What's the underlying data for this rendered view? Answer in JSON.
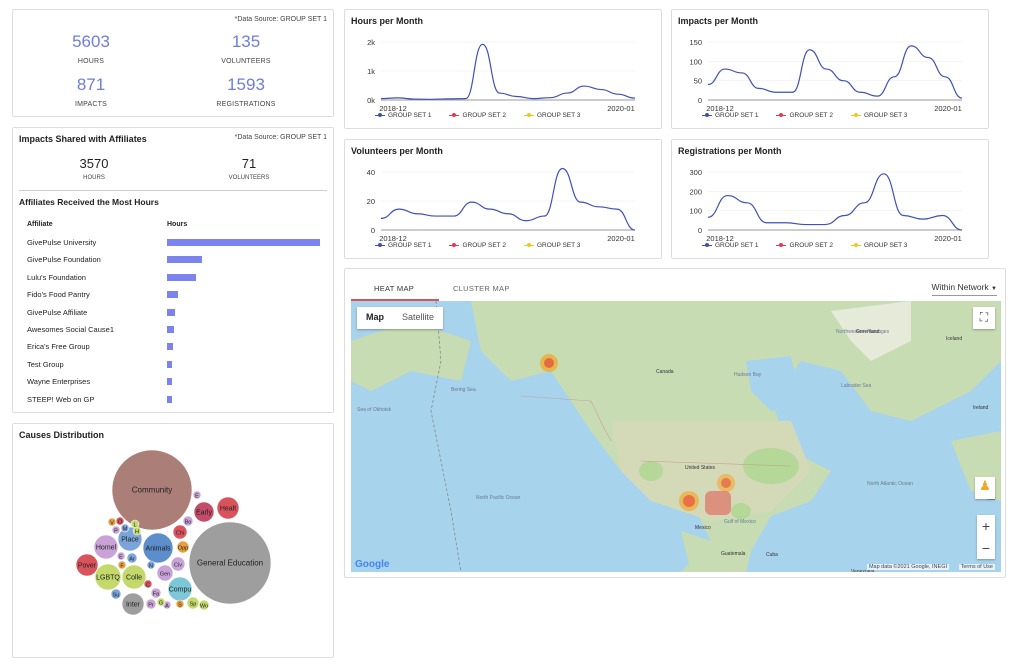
{
  "summary": {
    "source": "*Data Source: GROUP SET 1",
    "hours": "5603",
    "hours_label": "HOURS",
    "volunteers": "135",
    "volunteers_label": "VOLUNTEERS",
    "impacts": "871",
    "impacts_label": "IMPACTS",
    "registrations": "1593",
    "registrations_label": "REGISTRATIONS"
  },
  "affiliates": {
    "title": "Impacts Shared with Affiliates",
    "source": "*Data Source: GROUP SET 1",
    "hours": "3570",
    "hours_label": "HOURS",
    "volunteers": "71",
    "volunteers_label": "VOLUNTEERS",
    "most_title": "Affiliates Received the Most Hours",
    "col_affiliate": "Affiliate",
    "col_hours": "Hours",
    "rows": [
      {
        "name": "GivePulse University",
        "value": 1.0
      },
      {
        "name": "GivePulse Foundation",
        "value": 0.23
      },
      {
        "name": "Lulu's Foundation",
        "value": 0.19
      },
      {
        "name": "Fido's Food Pantry",
        "value": 0.07
      },
      {
        "name": "GivePulse Affiliate",
        "value": 0.05
      },
      {
        "name": "Awesomes Social Cause1",
        "value": 0.045
      },
      {
        "name": "Erica's Free Group",
        "value": 0.04
      },
      {
        "name": "Test Group",
        "value": 0.03
      },
      {
        "name": "Wayne Enterprises",
        "value": 0.03
      },
      {
        "name": "STEEP! Web on GP",
        "value": 0.03
      }
    ]
  },
  "causes": {
    "title": "Causes Distribution",
    "bubbles": [
      {
        "label": "Community",
        "color": "#ab7f78"
      },
      {
        "label": "General Education",
        "color": "#9e9e9e"
      },
      {
        "label": "Healt",
        "color": "#d9535c"
      },
      {
        "label": "Early",
        "color": "#c44b6a"
      },
      {
        "label": "E",
        "color": "#c9a3d8"
      },
      {
        "label": "Bo",
        "color": "#c9a3d8"
      },
      {
        "label": "Chi",
        "color": "#d9535c"
      },
      {
        "label": "Opp",
        "color": "#e6a040"
      },
      {
        "label": "Civ",
        "color": "#c9a3d8"
      },
      {
        "label": "Place",
        "color": "#7ba4d8"
      },
      {
        "label": "Animals",
        "color": "#5b8ecb"
      },
      {
        "label": "Homel",
        "color": "#c9a3d8"
      },
      {
        "label": "Pover",
        "color": "#d9535c"
      },
      {
        "label": "LGBTQ",
        "color": "#c4d86c"
      },
      {
        "label": "Colle",
        "color": "#c4d86c"
      },
      {
        "label": "Gen",
        "color": "#c9a3d8"
      },
      {
        "label": "Compu",
        "color": "#7cc8d8"
      },
      {
        "label": "Inter",
        "color": "#9e9e9e"
      },
      {
        "label": "Sp",
        "color": "#c4d86c"
      },
      {
        "label": "Wo",
        "color": "#c4d86c"
      },
      {
        "label": "Ar",
        "color": "#7ba4d8"
      },
      {
        "label": "Su",
        "color": "#7ba4d8"
      },
      {
        "label": "Pr",
        "color": "#c9a3d8"
      },
      {
        "label": "Fa",
        "color": "#c9a3d8"
      },
      {
        "label": "V",
        "color": "#e6a040"
      },
      {
        "label": "O",
        "color": "#d9535c"
      },
      {
        "label": "P",
        "color": "#c9a3d8"
      },
      {
        "label": "M",
        "color": "#7ba4d8"
      },
      {
        "label": "L",
        "color": "#c4d86c"
      },
      {
        "label": "H",
        "color": "#c4d86c"
      },
      {
        "label": "F",
        "color": "#e6a040"
      },
      {
        "label": "N",
        "color": "#7ba4d8"
      },
      {
        "label": "S",
        "color": "#e6a040"
      },
      {
        "label": "C",
        "color": "#d9535c"
      },
      {
        "label": "A",
        "color": "#c9a3d8"
      },
      {
        "label": "E",
        "color": "#c9a3d8"
      },
      {
        "label": "G",
        "color": "#c4d86c"
      }
    ]
  },
  "legend": {
    "s1": "GROUP SET 1",
    "s2": "GROUP SET 2",
    "s3": "GROUP SET 3",
    "c1": "#3f51b5",
    "c2": "#e53950",
    "c3": "#f5c518"
  },
  "chart_data": [
    {
      "type": "line",
      "title": "Hours per Month",
      "ylabel": "",
      "xlabel": "",
      "yticks": [
        "0k",
        "1k",
        "2k"
      ],
      "ymax": 2500,
      "x_ticks": [
        "2018-12",
        "2020-01"
      ],
      "series": [
        {
          "name": "GROUP SET 1",
          "values": [
            60,
            90,
            40,
            30,
            50,
            60,
            2400,
            300,
            150,
            60,
            100,
            300,
            600,
            450,
            250,
            80
          ]
        }
      ]
    },
    {
      "type": "line",
      "title": "Impacts per Month",
      "yticks": [
        "0",
        "50",
        "100",
        "150"
      ],
      "ymax": 150,
      "x_ticks": [
        "2018-12",
        "2020-01"
      ],
      "series": [
        {
          "name": "GROUP SET 1",
          "values": [
            40,
            80,
            70,
            30,
            20,
            20,
            130,
            80,
            50,
            20,
            10,
            60,
            140,
            110,
            60,
            5
          ]
        }
      ]
    },
    {
      "type": "line",
      "title": "Volunteers per Month",
      "yticks": [
        "0",
        "20",
        "40"
      ],
      "ymax": 50,
      "x_ticks": [
        "2018-12",
        "2020-01"
      ],
      "series": [
        {
          "name": "GROUP SET 1",
          "values": [
            10,
            18,
            14,
            12,
            12,
            24,
            18,
            14,
            8,
            12,
            53,
            24,
            20,
            18,
            0
          ]
        }
      ]
    },
    {
      "type": "line",
      "title": "Registrations per Month",
      "yticks": [
        "0",
        "100",
        "200",
        "300"
      ],
      "ymax": 320,
      "x_ticks": [
        "2018-12",
        "2020-01"
      ],
      "series": [
        {
          "name": "GROUP SET 1",
          "values": [
            70,
            190,
            150,
            40,
            40,
            30,
            30,
            80,
            150,
            310,
            80,
            60,
            80,
            0
          ]
        }
      ]
    }
  ],
  "map": {
    "tab_heat": "HEAT MAP",
    "tab_cluster": "CLUSTER MAP",
    "network": "Within Network",
    "btn_map": "Map",
    "btn_sat": "Satellite",
    "attrib": "Map data ©2021 Google, INEGI",
    "terms": "Terms of Use",
    "google": "Google",
    "labels": [
      "Northwestern Passages",
      "Greenland",
      "Iceland",
      "Canada",
      "Hudson Bay",
      "Labrador Sea",
      "Bering Sea",
      "Sea of Okhotsk",
      "Ireland",
      "United States",
      "North Pacific Ocean",
      "North Atlantic Ocean",
      "Mexico",
      "Gulf of Mexico",
      "Cuba",
      "Guatemala",
      "Venezuela",
      "Mor"
    ]
  }
}
